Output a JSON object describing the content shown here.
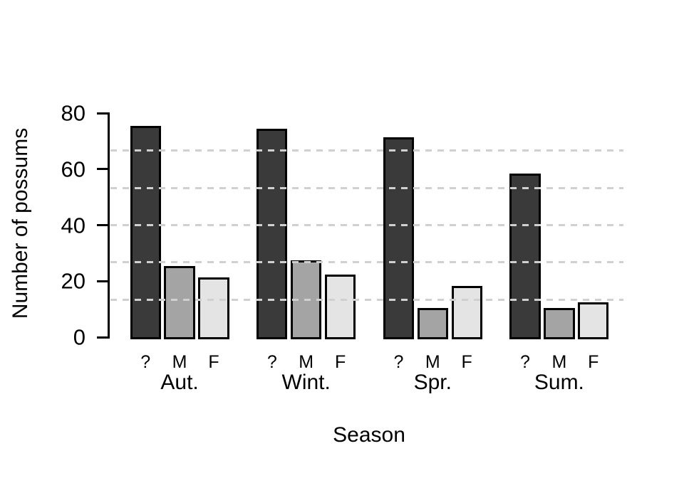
{
  "figure": {
    "background": "#ffffff",
    "text_color": "#000000"
  },
  "chart_data": {
    "type": "bar",
    "title": "",
    "xlabel": "Season",
    "ylabel": "Number of possums",
    "categories": [
      "Aut.",
      "Wint.",
      "Spr.",
      "Sum."
    ],
    "series_sublabels": [
      "?",
      "M",
      "F"
    ],
    "series": [
      {
        "name": "?",
        "color": "#3a3a3a",
        "values": [
          75,
          74,
          71,
          58
        ]
      },
      {
        "name": "M",
        "color": "#a4a4a4",
        "values": [
          25,
          27,
          10,
          10
        ]
      },
      {
        "name": "F",
        "color": "#e4e4e4",
        "values": [
          21,
          22,
          18,
          12
        ]
      }
    ],
    "ylim": [
      0,
      80
    ],
    "yticks": [
      0,
      20,
      40,
      60,
      80
    ],
    "gridlines": {
      "values": [
        13.33,
        26.67,
        40,
        53.33,
        66.67
      ],
      "style": "dashed",
      "color": "#d0d0d0",
      "drawn_on_top_of_bars": true
    },
    "bar_border_color": "#000000",
    "axis_color": "#000000",
    "legend_position": "none",
    "grid": "horizontal-dashed"
  }
}
